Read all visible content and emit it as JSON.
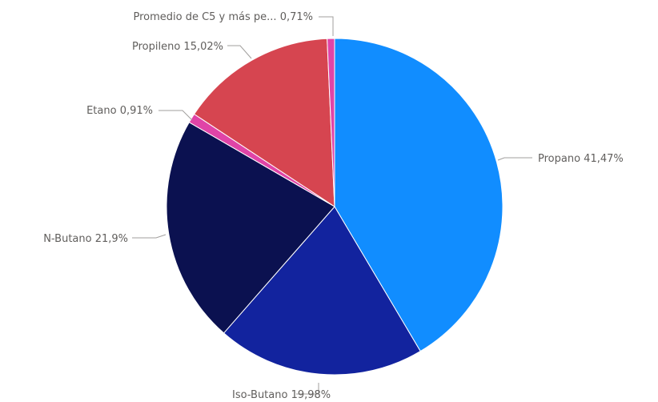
{
  "chart_data": {
    "type": "pie",
    "title": "",
    "legend": "none",
    "slices": [
      {
        "name": "Propano",
        "value": 41.47,
        "label": "Propano 41,47%",
        "color": "#118dff"
      },
      {
        "name": "Iso-Butano",
        "value": 19.98,
        "label": "Iso-Butano 19,98%",
        "color": "#12239e"
      },
      {
        "name": "N-Butano",
        "value": 21.9,
        "label": "N-Butano 21,9%",
        "color": "#0b1150"
      },
      {
        "name": "Etano",
        "value": 0.91,
        "label": "Etano 0,91%",
        "color": "#e044a7"
      },
      {
        "name": "Propileno",
        "value": 15.02,
        "label": "Propileno 15,02%",
        "color": "#d64550"
      },
      {
        "name": "Promedio de C5 y más pe...",
        "value": 0.71,
        "label": "Promedio de C5 y más pe... 0,71%",
        "color": "#e044a7"
      }
    ]
  }
}
